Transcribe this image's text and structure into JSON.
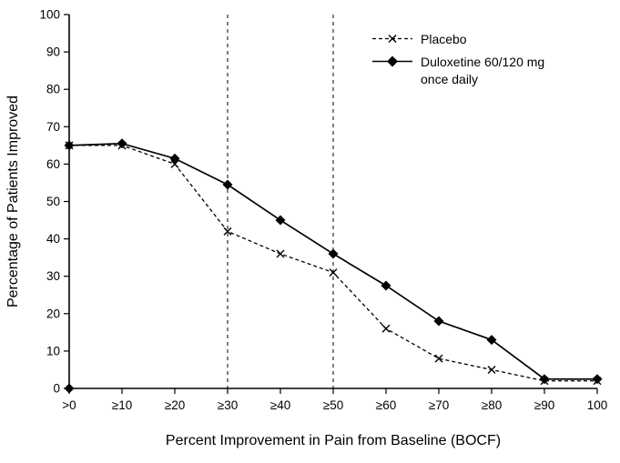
{
  "chart_data": {
    "type": "line",
    "title": "",
    "xlabel": "Percent Improvement in Pain from Baseline (BOCF)",
    "ylabel": "Percentage of Patients Improved",
    "categories": [
      ">0",
      "≥10",
      "≥20",
      "≥30",
      "≥40",
      "≥50",
      "≥60",
      "≥70",
      "≥80",
      "≥90",
      "100"
    ],
    "ylim": [
      0,
      100
    ],
    "ytick_step": 10,
    "grid": false,
    "legend_position": "top-right",
    "reference_line_categories": [
      "≥30",
      "≥50"
    ],
    "series": [
      {
        "name": "Placebo",
        "marker": "x",
        "line": "dashed",
        "color": "#000000",
        "values": [
          65,
          65,
          60,
          42,
          36,
          31,
          16,
          8,
          5,
          2,
          2
        ]
      },
      {
        "name": "Duloxetine 60/120 mg once daily",
        "marker": "diamond",
        "line": "solid",
        "color": "#000000",
        "values": [
          65,
          65.5,
          61.5,
          54.5,
          45,
          36,
          27.5,
          18,
          13,
          2.5,
          2.5
        ]
      }
    ],
    "origin_marker": {
      "category": ">0",
      "value": 0,
      "marker": "diamond"
    }
  },
  "colors": {
    "axis": "#000000",
    "background": "#ffffff"
  }
}
